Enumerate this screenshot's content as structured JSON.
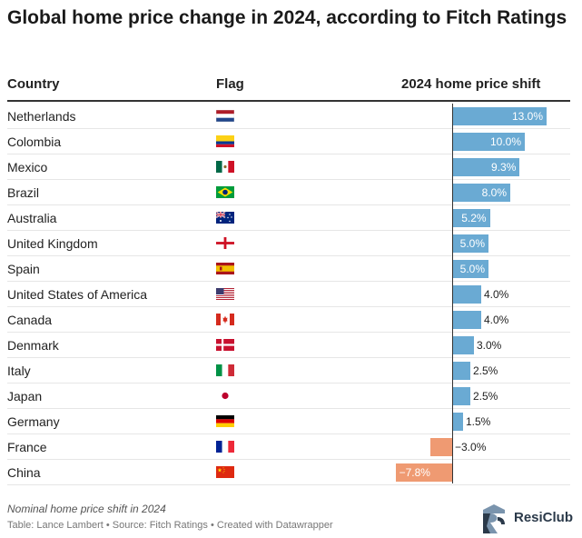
{
  "title": "Global home price change in 2024, according to Fitch Ratings",
  "columns": {
    "country": "Country",
    "flag": "Flag",
    "shift": "2024 home price shift"
  },
  "colors": {
    "positive": "#6aaad3",
    "negative": "#ef9a72"
  },
  "chart_data": {
    "type": "bar",
    "orientation": "horizontal",
    "title": "Global home price change in 2024, according to Fitch Ratings",
    "categories": [
      "Netherlands",
      "Colombia",
      "Mexico",
      "Brazil",
      "Australia",
      "United Kingdom",
      "Spain",
      "United States of America",
      "Canada",
      "Denmark",
      "Italy",
      "Japan",
      "Germany",
      "France",
      "China"
    ],
    "values": [
      13.0,
      10.0,
      9.3,
      8.0,
      5.2,
      5.0,
      5.0,
      4.0,
      4.0,
      3.0,
      2.5,
      2.5,
      1.5,
      -3.0,
      -7.8
    ],
    "labels": [
      "13.0%",
      "10.0%",
      "9.3%",
      "8.0%",
      "5.2%",
      "5.0%",
      "5.0%",
      "4.0%",
      "4.0%",
      "3.0%",
      "2.5%",
      "2.5%",
      "1.5%",
      "−3.0%",
      "−7.8%"
    ],
    "flags": [
      "netherlands-flag",
      "colombia-flag",
      "mexico-flag",
      "brazil-flag",
      "australia-flag",
      "england-flag",
      "spain-flag",
      "usa-flag",
      "canada-flag",
      "denmark-flag",
      "italy-flag",
      "japan-flag",
      "germany-flag",
      "france-flag",
      "china-flag"
    ],
    "xlim": [
      -7.8,
      13.0
    ]
  },
  "footer": {
    "note": "Nominal home price shift in 2024",
    "source": "Table: Lance Lambert • Source: Fitch Ratings • Created with Datawrapper",
    "brand": "ResiClub"
  }
}
